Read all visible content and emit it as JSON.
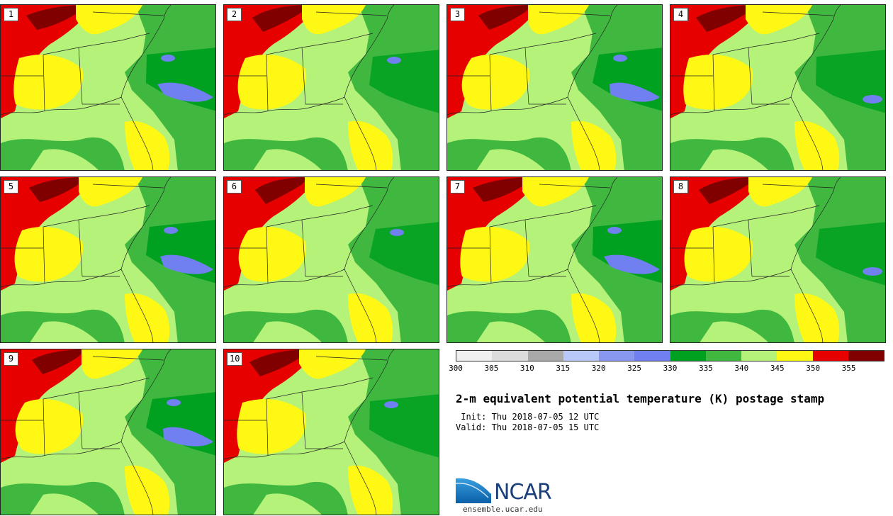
{
  "title": "2-m equivalent potential temperature (K) postage stamp",
  "init_line": " Init: Thu 2018-07-05 12 UTC",
  "valid_line": "Valid: Thu 2018-07-05 15 UTC",
  "members": [
    "1",
    "2",
    "3",
    "4",
    "5",
    "6",
    "7",
    "8",
    "9",
    "10"
  ],
  "colorbar": {
    "ticks": [
      "300",
      "305",
      "310",
      "315",
      "320",
      "325",
      "330",
      "335",
      "340",
      "345",
      "350",
      "355"
    ],
    "colors": [
      "#f0f0f0",
      "#dcdcdc",
      "#a9a9a9",
      "#b8c8f8",
      "#8898f0",
      "#7080f0",
      "#00a020",
      "#40b840",
      "#b5f27a",
      "#fff714",
      "#e60000",
      "#800000"
    ]
  },
  "logo": {
    "name": "NCAR",
    "url": "ensemble.ucar.edu"
  }
}
